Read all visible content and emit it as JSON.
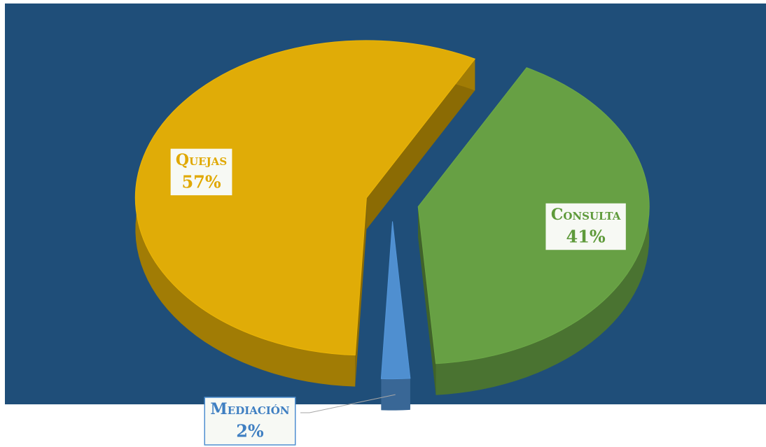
{
  "chart_data": {
    "type": "pie",
    "categories": [
      "Consulta",
      "Mediación",
      "Quejas"
    ],
    "values": [
      41,
      2,
      57
    ],
    "value_labels": [
      "41%",
      "2%",
      "57%"
    ],
    "colors": [
      "#67a044",
      "#4f8fd0",
      "#e0ac07"
    ],
    "label_colors": [
      "#5e9a3a",
      "#3f7fc2",
      "#e0a800"
    ],
    "background": "#1f4e79"
  }
}
